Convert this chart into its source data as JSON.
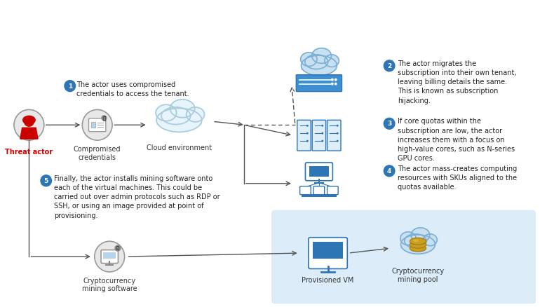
{
  "bg_color": "#ffffff",
  "light_blue_bg": "#d6eaf8",
  "blue_icon_color": "#2e75b6",
  "step_circle_color": "#2e75b6",
  "threat_actor_color": "#cc0000",
  "arrow_color": "#555555",
  "step1_text": "The actor uses compromised\ncredentials to access the tenant.",
  "step2_text": "The actor migrates the\nsubscription into their own tenant,\nleaving billing details the same.\nThis is known as subscription\nhijacking.",
  "step3_text": "If core quotas within the\nsubscription are low, the actor\nincreases them with a focus on\nhigh-value cores, such as N-series\nGPU cores.",
  "step4_text": "The actor mass-creates computing\nresources with SKUs aligned to the\nquotas available.",
  "step5_text": "Finally, the actor installs mining software onto\neach of the virtual machines. This could be\ncarried out over admin protocols such as RDP or\nSSH, or using an image provided at point of\nprovisioning.",
  "label_compromised": "Compromised\ncredentials",
  "label_cloud": "Cloud environment",
  "label_crypto_mining": "Cryptocurrency\nmining software",
  "label_provisioned_vm": "Provisioned VM",
  "label_crypto_pool": "Cryptocurrency\nmining pool",
  "label_threat_actor": "Threat actor"
}
